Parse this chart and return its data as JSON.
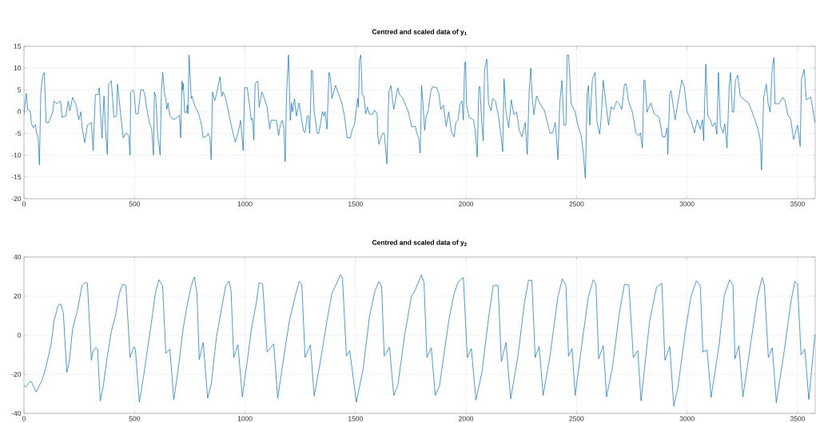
{
  "chart_data": [
    {
      "type": "line",
      "title": "Centred and scaled data of y$_{1}$",
      "color": "#0072bd",
      "grid": true,
      "xlim": [
        0,
        3580
      ],
      "ylim": [
        -20,
        15
      ],
      "xticks": [
        0,
        500,
        1000,
        1500,
        2000,
        2500,
        3000,
        3500
      ],
      "yticks": [
        -20,
        -15,
        -10,
        -5,
        0,
        5,
        10,
        15
      ],
      "x": [
        0,
        10,
        17,
        28,
        34,
        43,
        52,
        58,
        64,
        70,
        76,
        84,
        92,
        100,
        112,
        130,
        136,
        148,
        166,
        172,
        190,
        200,
        208,
        220,
        236,
        248,
        257,
        263,
        275,
        287,
        305,
        313,
        323,
        335,
        341,
        345,
        353,
        362,
        369,
        377,
        383,
        395,
        407,
        419,
        423,
        449,
        462,
        474,
        480,
        483,
        492,
        498,
        506,
        516,
        522,
        528,
        540,
        546,
        558,
        570,
        578,
        586,
        590,
        596,
        606,
        612,
        616,
        622,
        628,
        636,
        642,
        646,
        652,
        660,
        672,
        684,
        696,
        703,
        709,
        715,
        718,
        721,
        727,
        736,
        739,
        742,
        747,
        757,
        760,
        775,
        787,
        793,
        803,
        811,
        829,
        833,
        841,
        847,
        853,
        863,
        871,
        887,
        895,
        901,
        913,
        925,
        937,
        956,
        968,
        980,
        992,
        998,
        1010,
        1022,
        1028,
        1034,
        1040,
        1046,
        1058,
        1064,
        1076,
        1088,
        1100,
        1112,
        1118,
        1142,
        1152,
        1160,
        1169,
        1176,
        1182,
        1188,
        1197,
        1205,
        1211,
        1215,
        1224,
        1233,
        1245,
        1257,
        1265,
        1272,
        1281,
        1287,
        1293,
        1301,
        1305,
        1313,
        1327,
        1333,
        1341,
        1350,
        1357,
        1362,
        1371,
        1380,
        1386,
        1393,
        1410,
        1417,
        1438,
        1450,
        1462,
        1477,
        1486,
        1495,
        1510,
        1513,
        1518,
        1524,
        1530,
        1538,
        1546,
        1554,
        1562,
        1576,
        1586,
        1598,
        1600,
        1606,
        1622,
        1630,
        1642,
        1651,
        1660,
        1673,
        1691,
        1699,
        1715,
        1739,
        1754,
        1771,
        1777,
        1786,
        1793,
        1799,
        1805,
        1813,
        1819,
        1829,
        1841,
        1849,
        1867,
        1877,
        1886,
        1898,
        1910,
        1922,
        1934,
        1946,
        1954,
        1964,
        1973,
        1982,
        1988,
        1994,
        1998,
        2002,
        2014,
        2034,
        2042,
        2051,
        2058,
        2063,
        2072,
        2078,
        2084,
        2094,
        2102,
        2114,
        2120,
        2133,
        2147,
        2159,
        2166,
        2172,
        2181,
        2193,
        2205,
        2217,
        2229,
        2241,
        2253,
        2268,
        2277,
        2286,
        2293,
        2301,
        2307,
        2319,
        2335,
        2355,
        2380,
        2392,
        2404,
        2416,
        2424,
        2434,
        2443,
        2452,
        2458,
        2464,
        2476,
        2494,
        2506,
        2521,
        2530,
        2540,
        2548,
        2554,
        2560,
        2572,
        2584,
        2593,
        2605,
        2612,
        2621,
        2633,
        2645,
        2657,
        2669,
        2681,
        2693,
        2705,
        2717,
        2725,
        2735,
        2753,
        2769,
        2781,
        2789,
        2798,
        2805,
        2810,
        2819,
        2837,
        2850,
        2874,
        2889,
        2901,
        2910,
        2913,
        2922,
        2928,
        2946,
        2964,
        2976,
        2988,
        3000,
        3018,
        3034,
        3046,
        3060,
        3070,
        3075,
        3085,
        3094,
        3106,
        3115,
        3127,
        3135,
        3142,
        3151,
        3163,
        3171,
        3181,
        3191,
        3197,
        3205,
        3211,
        3219,
        3229,
        3241,
        3259,
        3277,
        3295,
        3307,
        3319,
        3331,
        3337,
        3347,
        3359,
        3367,
        3376,
        3386,
        3393,
        3398,
        3416,
        3434,
        3444,
        3456,
        3470,
        3482,
        3500,
        3512,
        3518,
        3530,
        3540,
        3560,
        3579
      ],
      "values": [
        -0.7,
        4.2,
        0.4,
        0.2,
        -2.8,
        -3.7,
        -3,
        -5.2,
        -6,
        -12.2,
        4.2,
        8.1,
        9,
        -2.5,
        -2.5,
        -0.1,
        2.4,
        1.8,
        2.4,
        -1.3,
        -1,
        2.4,
        0.2,
        3.3,
        1.5,
        -1.9,
        -0.1,
        -3.7,
        -7.1,
        -3.1,
        -2.5,
        -8.9,
        3.9,
        3.9,
        5.5,
        1.1,
        -6.1,
        3.6,
        -4.3,
        -9.8,
        6.3,
        7.1,
        -1.3,
        -1,
        6.3,
        -6,
        -4.9,
        -5.5,
        -10,
        4.5,
        5,
        4.5,
        -0.5,
        -0.5,
        2,
        5,
        5,
        4,
        0,
        -3,
        -4,
        -10,
        4.5,
        3.5,
        -6,
        -8,
        -10,
        5,
        9,
        4,
        3,
        0.5,
        2,
        -1,
        -1.7,
        -1.7,
        -1.2,
        -0.8,
        -6,
        7,
        5,
        6.5,
        -0.2,
        -0.2,
        1.5,
        -0.5,
        13,
        3,
        3.5,
        1,
        0,
        -1,
        -3,
        -6,
        -5.5,
        -5,
        -6,
        -11,
        4.5,
        2.5,
        4,
        8,
        3.5,
        4.5,
        3,
        0,
        -3,
        -7,
        -5,
        -2,
        -9,
        5.5,
        5.5,
        1,
        -2,
        -1.5,
        -6.5,
        6.5,
        7,
        1,
        4.5,
        3,
        1,
        -4,
        -2,
        -2,
        -5.5,
        -3,
        -2,
        -4,
        -11.5,
        4,
        13,
        -2,
        2,
        0,
        3,
        -1,
        2,
        -2,
        -4.5,
        -4.8,
        -1,
        -1,
        -5,
        9.5,
        9.5,
        0,
        -5,
        -5,
        -3,
        0,
        -1,
        0,
        -4,
        9,
        8,
        3,
        6,
        5,
        2,
        -1,
        -6,
        -6,
        -4,
        -3,
        3,
        1,
        12,
        13,
        4,
        3.5,
        -0.5,
        1,
        -0.5,
        -0.7,
        0.3,
        -0.5,
        -5,
        -7.5,
        -5,
        -5,
        -12,
        4.5,
        6,
        0.5,
        5.5,
        4,
        3,
        0,
        -3.5,
        -3.4,
        -4.9,
        -6.1,
        -9.5,
        6,
        2,
        -4.3,
        -1.3,
        0.2,
        4.8,
        5.7,
        5.5,
        4.2,
        0.5,
        1.5,
        -3.4,
        -0.1,
        -4.6,
        -5.8,
        -2.5,
        -1.9,
        1.8,
        2.4,
        -1.9,
        11.2,
        11.5,
        1.8,
        -1.3,
        -1.9,
        -4.6,
        -10.4,
        5.7,
        5.7,
        -3.1,
        -6.7,
        9.7,
        12.1,
        1.8,
        0.2,
        3,
        2.4,
        -1,
        -5.8,
        -9.2,
        7.5,
        -0.1,
        -3.7,
        2.7,
        -0.7,
        -0.1,
        -4.3,
        -5.8,
        -2.5,
        -9.8,
        4.8,
        10,
        2.4,
        -0.7,
        3.6,
        1.8,
        0.2,
        -4.9,
        -4.9,
        -2.5,
        -11,
        1.8,
        7.1,
        -3.1,
        -3.1,
        13,
        13,
        1.8,
        -0.1,
        -3.1,
        -5.5,
        -9.2,
        -15.3,
        3.9,
        6,
        -3.1,
        7.5,
        9,
        -2.5,
        -5.2,
        -1,
        7.2,
        1.8,
        -3.1,
        1.1,
        0.5,
        2.4,
        1.8,
        0.5,
        6.3,
        6.3,
        2.4,
        -0.1,
        -4.9,
        -5.5,
        -4.9,
        -8.3,
        7.2,
        7.2,
        -0.1,
        2,
        -0.4,
        -1.3,
        -5.8,
        -5.8,
        -3.7,
        -9.8,
        4.2,
        4.8,
        -1.9,
        3.6,
        7.2,
        5.7,
        -0.1,
        -1.9,
        -4.9,
        -1.9,
        -4,
        -1.9,
        -6.7,
        10.9,
        -1,
        -1.9,
        -3.4,
        -2.5,
        -5.2,
        9,
        -3.1,
        -4.9,
        -2.8,
        -8.3,
        6,
        9,
        -0.1,
        -0.1,
        7.2,
        8.4,
        3.6,
        2.7,
        2.1,
        -0.1,
        -1.9,
        -3.7,
        -6.4,
        -13.4,
        3.3,
        6.3,
        1.8,
        -0.1,
        10.3,
        12.4,
        1.8,
        1.8,
        3.3,
        2.4,
        -0.7,
        -1.9,
        -6.4,
        -3.1,
        -8,
        7.5,
        9.7,
        2.7,
        3.3,
        -2.5
      ]
    },
    {
      "type": "line",
      "title": "Centred and scaled data of y$_{2}$",
      "color": "#0072bd",
      "grid": true,
      "xlim": [
        0,
        3580
      ],
      "ylim": [
        -40,
        40
      ],
      "xticks": [
        0,
        500,
        1000,
        1500,
        2000,
        2500,
        3000,
        3500
      ],
      "yticks": [
        -40,
        -20,
        0,
        20,
        40
      ],
      "x": [
        0,
        10,
        28,
        34,
        55,
        82,
        100,
        122,
        136,
        154,
        166,
        178,
        194,
        205,
        220,
        242,
        263,
        277,
        287,
        305,
        311,
        325,
        333,
        345,
        359,
        377,
        395,
        413,
        431,
        446,
        461,
        480,
        498,
        504,
        522,
        540,
        558,
        576,
        594,
        610,
        627,
        642,
        660,
        678,
        696,
        720,
        739,
        757,
        771,
        783,
        793,
        811,
        831,
        847,
        871,
        895,
        913,
        928,
        937,
        949,
        968,
        988,
        1010,
        1028,
        1052,
        1064,
        1080,
        1100,
        1130,
        1148,
        1178,
        1202,
        1227,
        1245,
        1257,
        1272,
        1296,
        1313,
        1341,
        1371,
        1393,
        1413,
        1432,
        1441,
        1459,
        1474,
        1504,
        1534,
        1564,
        1588,
        1606,
        1618,
        1630,
        1654,
        1673,
        1691,
        1723,
        1753,
        1771,
        1798,
        1810,
        1823,
        1843,
        1861,
        1880,
        1922,
        1946,
        1966,
        1988,
        2006,
        2024,
        2045,
        2072,
        2102,
        2123,
        2145,
        2160,
        2181,
        2202,
        2235,
        2265,
        2283,
        2298,
        2313,
        2331,
        2349,
        2380,
        2416,
        2436,
        2452,
        2464,
        2480,
        2494,
        2530,
        2554,
        2576,
        2588,
        2600,
        2621,
        2636,
        2663,
        2693,
        2717,
        2737,
        2757,
        2777,
        2792,
        2831,
        2862,
        2886,
        2900,
        2922,
        2940,
        2958,
        2994,
        3018,
        3042,
        3060,
        3072,
        3091,
        3109,
        3145,
        3169,
        3193,
        3208,
        3217,
        3235,
        3253,
        3289,
        3319,
        3340,
        3350,
        3368,
        3386,
        3404,
        3440,
        3470,
        3488,
        3500,
        3516,
        3533,
        3551,
        3579
      ],
      "values": [
        -26,
        -26.2,
        -23.6,
        -23.9,
        -29,
        -23,
        -16,
        -5,
        7.4,
        15,
        16,
        11.5,
        -19,
        -13.5,
        3.2,
        12.9,
        25.4,
        27,
        26.5,
        -12.8,
        -8.6,
        -6.2,
        -7.2,
        -33.6,
        -25.9,
        -10.7,
        1.8,
        9.4,
        21.2,
        26.1,
        25.4,
        -11.4,
        -5.8,
        -7.2,
        -34.3,
        -21.8,
        -7.9,
        6,
        21.2,
        28.4,
        25.4,
        -9.3,
        -7.2,
        -32.9,
        -19,
        3.2,
        15.7,
        25.4,
        29.8,
        21.2,
        -12.5,
        -3.7,
        -32.2,
        -25.2,
        -1,
        14.3,
        25.4,
        27.7,
        22.6,
        -11.4,
        -4.9,
        -31.5,
        -13.5,
        2.5,
        17.1,
        26.8,
        26.1,
        -8.6,
        -4.4,
        -32.2,
        -9.3,
        8,
        19.8,
        27.5,
        26.1,
        -11.4,
        -4.9,
        -31.2,
        -13.5,
        7.4,
        21.2,
        26.1,
        30.9,
        29.5,
        -10.7,
        -7.9,
        -34.3,
        -17.6,
        10.1,
        22.6,
        27.5,
        25.4,
        -10.7,
        -6.2,
        -30.8,
        -25.9,
        0.4,
        19.8,
        23.3,
        30.9,
        26.8,
        -11.4,
        -6.5,
        -30.8,
        -25.9,
        7.4,
        21.2,
        27.5,
        29.5,
        -11.4,
        -6.8,
        -33.1,
        -19,
        8.7,
        25.4,
        25.4,
        -13.5,
        -3.7,
        -32.6,
        -10.7,
        17.1,
        28.2,
        27.9,
        -11.4,
        -5.8,
        -30.8,
        -10.7,
        19.8,
        28.8,
        25.4,
        -10.7,
        -6.8,
        -30.8,
        0.4,
        19.8,
        28.4,
        26.1,
        -12.1,
        -5.4,
        -31.5,
        -16.2,
        10.8,
        26.1,
        25.7,
        -11.4,
        -7.9,
        -33.6,
        7.4,
        24.7,
        26.5,
        -12.8,
        -5.8,
        -36.3,
        -27.3,
        3.2,
        19.8,
        27.9,
        25.4,
        -8.6,
        -7.6,
        -31.8,
        -5.1,
        20.5,
        28.4,
        25.4,
        -12.1,
        -5.4,
        -31.5,
        -3.7,
        19.8,
        29.5,
        25.4,
        -11.4,
        -6.5,
        -34.5,
        -7.9,
        17.1,
        27.5,
        26.1,
        -10,
        -7.2,
        -32.9,
        0.4
      ]
    }
  ]
}
